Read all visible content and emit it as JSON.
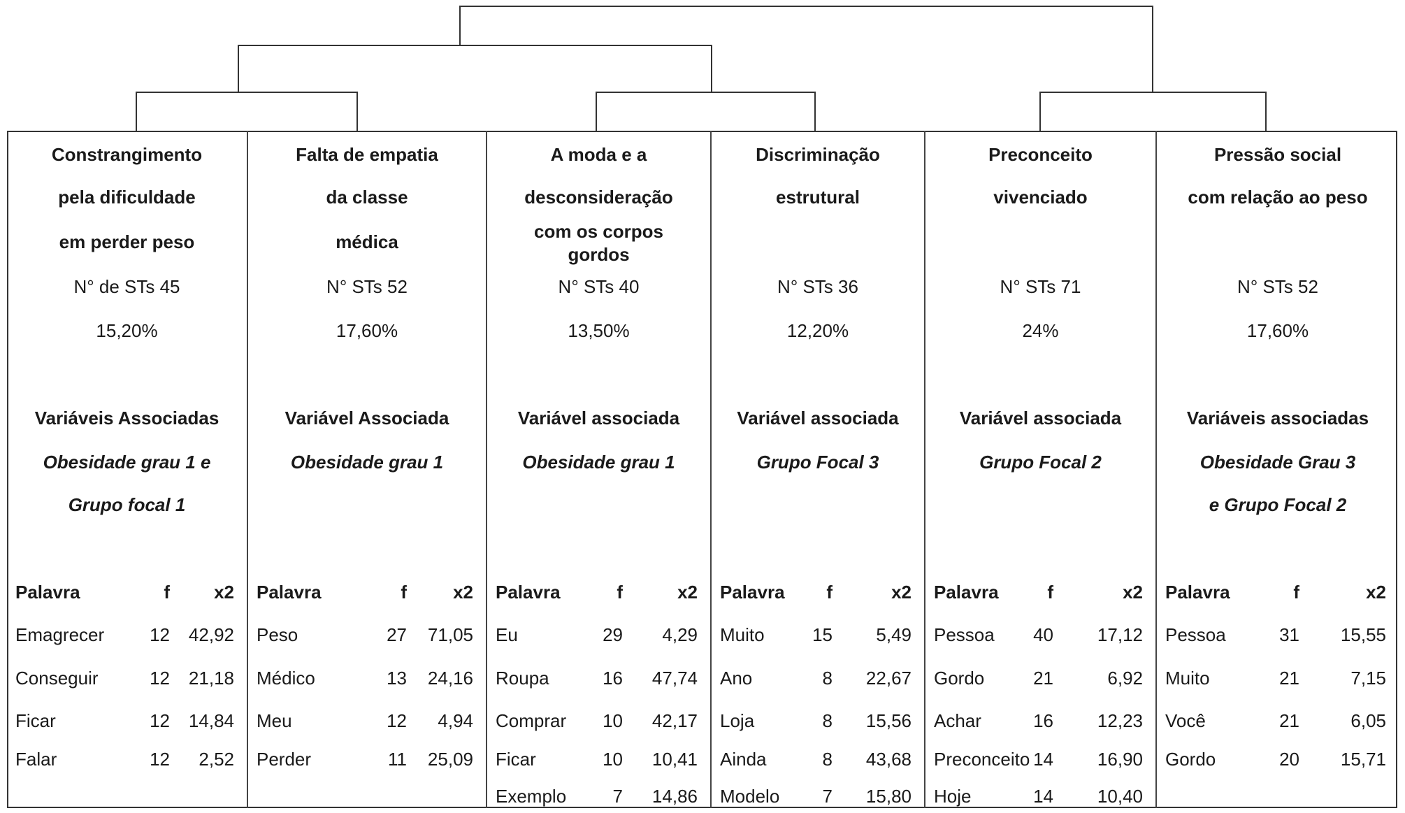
{
  "columns": [
    {
      "title": [
        "Constrangimento",
        "pela dificuldade",
        "em perder peso"
      ],
      "sts": "N° de STs 45",
      "pct": "15,20%",
      "var_label": "Variáveis Associadas",
      "vars": [
        "Obesidade grau 1 e",
        "Grupo focal 1"
      ],
      "headers": [
        "Palavra",
        "f",
        "x2"
      ],
      "rows": [
        [
          "Emagrecer",
          "12",
          "42,92"
        ],
        [
          "Conseguir",
          "12",
          "21,18"
        ],
        [
          "Ficar",
          "12",
          "14,84"
        ],
        [
          "Falar",
          "12",
          "2,52"
        ]
      ]
    },
    {
      "title": [
        "Falta de empatia",
        "da classe",
        "médica"
      ],
      "sts": "N° STs 52",
      "pct": "17,60%",
      "var_label": "Variável Associada",
      "vars": [
        "Obesidade grau 1"
      ],
      "headers": [
        "Palavra",
        "f",
        "x2"
      ],
      "rows": [
        [
          "Peso",
          "27",
          "71,05"
        ],
        [
          "Médico",
          "13",
          "24,16"
        ],
        [
          "Meu",
          "12",
          "4,94"
        ],
        [
          "Perder",
          "11",
          "25,09"
        ]
      ]
    },
    {
      "title": [
        "A moda e a",
        "desconsideração",
        "com os corpos",
        "gordos"
      ],
      "sts": "N° STs 40",
      "pct": "13,50%",
      "var_label": "Variável associada",
      "vars": [
        "Obesidade grau 1"
      ],
      "headers": [
        "Palavra",
        "f",
        "x2"
      ],
      "rows": [
        [
          "Eu",
          "29",
          "4,29"
        ],
        [
          "Roupa",
          "16",
          "47,74"
        ],
        [
          "Comprar",
          "10",
          "42,17"
        ],
        [
          "Ficar",
          "10",
          "10,41"
        ],
        [
          "Exemplo",
          "7",
          "14,86"
        ]
      ]
    },
    {
      "title": [
        "Discriminação",
        "estrutural"
      ],
      "sts": "N° STs 36",
      "pct": "12,20%",
      "var_label": "Variável associada",
      "vars": [
        "Grupo Focal 3"
      ],
      "headers": [
        "Palavra",
        "f",
        "x2"
      ],
      "rows": [
        [
          "Muito",
          "15",
          "5,49"
        ],
        [
          "Ano",
          "8",
          "22,67"
        ],
        [
          "Loja",
          "8",
          "15,56"
        ],
        [
          "Ainda",
          "8",
          "43,68"
        ],
        [
          "Modelo",
          "7",
          "15,80"
        ]
      ]
    },
    {
      "title": [
        "Preconceito",
        "vivenciado"
      ],
      "sts": "N° STs 71",
      "pct": "24%",
      "var_label": "Variável associada",
      "vars": [
        "Grupo Focal 2"
      ],
      "headers": [
        "Palavra",
        "f",
        "x2"
      ],
      "rows": [
        [
          "Pessoa",
          "40",
          "17,12"
        ],
        [
          "Gordo",
          "21",
          "6,92"
        ],
        [
          "Achar",
          "16",
          "12,23"
        ],
        [
          "Preconceito",
          "14",
          "16,90"
        ],
        [
          "Hoje",
          "14",
          "10,40"
        ]
      ]
    },
    {
      "title": [
        "Pressão social",
        "com relação ao peso"
      ],
      "sts": "N° STs 52",
      "pct": "17,60%",
      "var_label": "Variáveis associadas",
      "vars": [
        "Obesidade Grau 3",
        "e Grupo Focal 2"
      ],
      "headers": [
        "Palavra",
        "f",
        "x2"
      ],
      "rows": [
        [
          "Pessoa",
          "31",
          "15,55"
        ],
        [
          "Muito",
          "21",
          "7,15"
        ],
        [
          "Você",
          "21",
          "6,05"
        ],
        [
          "Gordo",
          "20",
          "15,71"
        ]
      ]
    }
  ]
}
